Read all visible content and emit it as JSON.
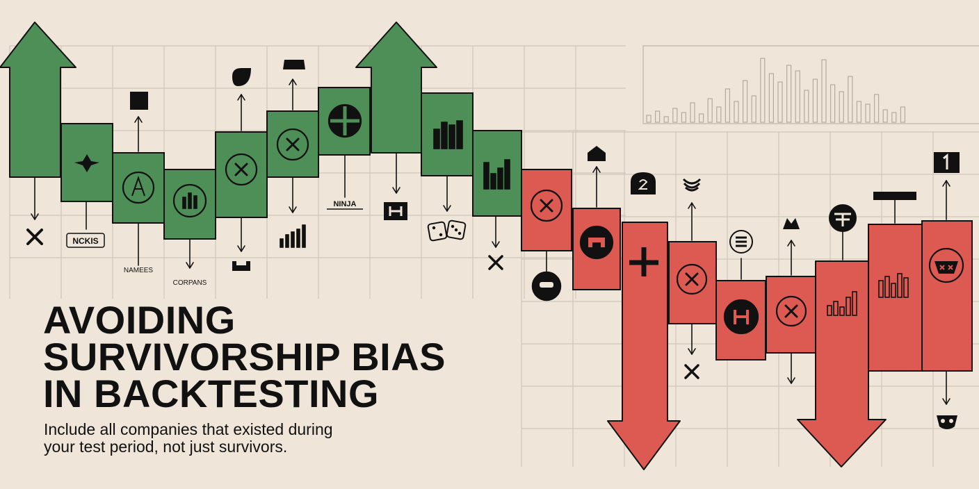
{
  "headline": {
    "line1": "AVOIDING",
    "line2": "SURVIVORSHIP BIAS",
    "line3": "IN BACKTESTING"
  },
  "subheadline": {
    "line1": "Include all companies that existed during",
    "line2": "your test period, not just survivors."
  },
  "labels": {
    "ncks": "NCKIS",
    "names": "NAMEES",
    "companies": "CORPANS",
    "ninja": "NINJA"
  },
  "colors": {
    "background": "#efe6d9",
    "grid": "#cfc6ba",
    "survivor_green": "#4e8f57",
    "failed_red": "#dc5a52",
    "ink": "#111111"
  }
}
